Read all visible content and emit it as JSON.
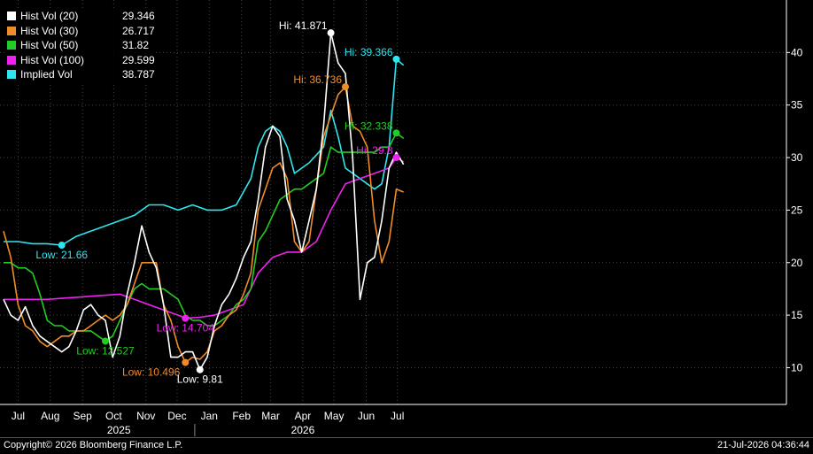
{
  "chart_data": {
    "type": "line",
    "title": "",
    "xlabel": "",
    "ylabel": "",
    "ylim": [
      6.5,
      45
    ],
    "y_ticks": [
      10,
      15,
      20,
      25,
      30,
      35,
      40
    ],
    "y_axis_side": "right",
    "grid": true,
    "legend_position": "top-left",
    "x_start": "2024-07-01",
    "x_end": "2026-07-21",
    "x_month_labels": [
      {
        "label": "Jul",
        "date": "2024-07-15"
      },
      {
        "label": "Aug",
        "date": "2024-08-15"
      },
      {
        "label": "Sep",
        "date": "2024-09-15"
      },
      {
        "label": "Oct",
        "date": "2024-10-15"
      },
      {
        "label": "Nov",
        "date": "2024-11-15"
      },
      {
        "label": "Dec",
        "date": "2024-12-15"
      },
      {
        "label": "Jan",
        "date": "2025-01-15"
      },
      {
        "label": "Feb",
        "date": "2025-02-15"
      },
      {
        "label": "Mar",
        "date": "2025-03-15"
      },
      {
        "label": "Apr",
        "date": "2025-04-15"
      },
      {
        "label": "May",
        "date": "2025-05-15"
      },
      {
        "label": "Jun",
        "date": "2025-06-15"
      },
      {
        "label": "Jul",
        "date": "2025-07-15"
      }
    ],
    "x_year_labels": [
      {
        "label": "2025",
        "date": "2024-10-20"
      },
      {
        "label": "2026",
        "date": "2025-04-15"
      }
    ],
    "year_separator_date": "2025-01-01",
    "series": [
      {
        "name": "Hist Vol (20)",
        "last": "29.346",
        "color": "#ffffff",
        "points": [
          [
            "2024-07-01",
            16.5
          ],
          [
            "2024-07-08",
            15.0
          ],
          [
            "2024-07-15",
            14.5
          ],
          [
            "2024-07-22",
            15.8
          ],
          [
            "2024-07-29",
            14.0
          ],
          [
            "2024-08-05",
            13.0
          ],
          [
            "2024-08-12",
            12.5
          ],
          [
            "2024-08-19",
            12.0
          ],
          [
            "2024-08-26",
            11.5
          ],
          [
            "2024-09-02",
            12.0
          ],
          [
            "2024-09-09",
            13.5
          ],
          [
            "2024-09-16",
            15.5
          ],
          [
            "2024-09-23",
            16.0
          ],
          [
            "2024-09-30",
            15.0
          ],
          [
            "2024-10-07",
            14.5
          ],
          [
            "2024-10-14",
            11.0
          ],
          [
            "2024-10-21",
            13.0
          ],
          [
            "2024-10-28",
            17.0
          ],
          [
            "2024-11-04",
            20.0
          ],
          [
            "2024-11-11",
            23.5
          ],
          [
            "2024-11-18",
            21.0
          ],
          [
            "2024-11-25",
            19.5
          ],
          [
            "2024-12-02",
            16.0
          ],
          [
            "2024-12-09",
            11.0
          ],
          [
            "2024-12-16",
            11.0
          ],
          [
            "2024-12-23",
            11.5
          ],
          [
            "2024-12-30",
            11.5
          ],
          [
            "2025-01-06",
            9.81
          ],
          [
            "2025-01-13",
            11.0
          ],
          [
            "2025-01-20",
            14.0
          ],
          [
            "2025-01-27",
            16.0
          ],
          [
            "2025-02-03",
            17.0
          ],
          [
            "2025-02-10",
            18.5
          ],
          [
            "2025-02-17",
            20.5
          ],
          [
            "2025-02-24",
            22.0
          ],
          [
            "2025-03-03",
            26.0
          ],
          [
            "2025-03-10",
            31.0
          ],
          [
            "2025-03-17",
            33.0
          ],
          [
            "2025-03-24",
            32.0
          ],
          [
            "2025-03-31",
            26.0
          ],
          [
            "2025-04-07",
            24.0
          ],
          [
            "2025-04-14",
            21.0
          ],
          [
            "2025-04-21",
            24.0
          ],
          [
            "2025-04-28",
            27.0
          ],
          [
            "2025-05-05",
            33.0
          ],
          [
            "2025-05-12",
            41.871
          ],
          [
            "2025-05-19",
            39.0
          ],
          [
            "2025-05-26",
            38.0
          ],
          [
            "2025-06-02",
            30.0
          ],
          [
            "2025-06-09",
            16.5
          ],
          [
            "2025-06-16",
            20.0
          ],
          [
            "2025-06-23",
            20.5
          ],
          [
            "2025-06-30",
            24.0
          ],
          [
            "2025-07-07",
            29.0
          ],
          [
            "2025-07-14",
            30.5
          ],
          [
            "2025-07-21",
            29.346
          ]
        ]
      },
      {
        "name": "Hist Vol (30)",
        "last": "26.717",
        "color": "#f08c28",
        "points": [
          [
            "2024-07-01",
            23.0
          ],
          [
            "2024-07-08",
            20.5
          ],
          [
            "2024-07-15",
            16.0
          ],
          [
            "2024-07-22",
            14.0
          ],
          [
            "2024-07-29",
            13.5
          ],
          [
            "2024-08-05",
            12.5
          ],
          [
            "2024-08-12",
            12.0
          ],
          [
            "2024-08-19",
            12.5
          ],
          [
            "2024-08-26",
            13.0
          ],
          [
            "2024-09-02",
            13.0
          ],
          [
            "2024-09-09",
            13.5
          ],
          [
            "2024-09-16",
            13.5
          ],
          [
            "2024-09-23",
            14.0
          ],
          [
            "2024-09-30",
            14.5
          ],
          [
            "2024-10-07",
            15.0
          ],
          [
            "2024-10-14",
            14.5
          ],
          [
            "2024-10-21",
            15.0
          ],
          [
            "2024-10-28",
            16.0
          ],
          [
            "2024-11-04",
            18.0
          ],
          [
            "2024-11-11",
            20.0
          ],
          [
            "2024-11-18",
            20.0
          ],
          [
            "2024-11-25",
            20.0
          ],
          [
            "2024-12-02",
            16.0
          ],
          [
            "2024-12-09",
            14.5
          ],
          [
            "2024-12-16",
            12.0
          ],
          [
            "2024-12-23",
            10.496
          ],
          [
            "2024-12-30",
            11.0
          ],
          [
            "2025-01-06",
            10.8
          ],
          [
            "2025-01-13",
            11.5
          ],
          [
            "2025-01-20",
            13.5
          ],
          [
            "2025-01-27",
            14.0
          ],
          [
            "2025-02-03",
            15.0
          ],
          [
            "2025-02-10",
            15.5
          ],
          [
            "2025-02-17",
            17.0
          ],
          [
            "2025-02-24",
            19.0
          ],
          [
            "2025-03-03",
            25.0
          ],
          [
            "2025-03-10",
            27.0
          ],
          [
            "2025-03-17",
            29.0
          ],
          [
            "2025-03-24",
            29.5
          ],
          [
            "2025-03-31",
            28.0
          ],
          [
            "2025-04-07",
            22.0
          ],
          [
            "2025-04-14",
            21.0
          ],
          [
            "2025-04-21",
            22.0
          ],
          [
            "2025-04-28",
            27.0
          ],
          [
            "2025-05-05",
            32.0
          ],
          [
            "2025-05-12",
            34.0
          ],
          [
            "2025-05-19",
            36.0
          ],
          [
            "2025-05-26",
            36.736
          ],
          [
            "2025-06-02",
            33.0
          ],
          [
            "2025-06-09",
            32.5
          ],
          [
            "2025-06-16",
            31.0
          ],
          [
            "2025-06-23",
            24.0
          ],
          [
            "2025-06-30",
            20.0
          ],
          [
            "2025-07-07",
            22.0
          ],
          [
            "2025-07-14",
            27.0
          ],
          [
            "2025-07-21",
            26.717
          ]
        ]
      },
      {
        "name": "Hist Vol (50)",
        "last": "31.82",
        "color": "#22cc22",
        "points": [
          [
            "2024-07-01",
            20.0
          ],
          [
            "2024-07-08",
            20.0
          ],
          [
            "2024-07-15",
            19.5
          ],
          [
            "2024-07-22",
            19.5
          ],
          [
            "2024-07-29",
            19.0
          ],
          [
            "2024-08-05",
            17.0
          ],
          [
            "2024-08-12",
            14.5
          ],
          [
            "2024-08-19",
            14.0
          ],
          [
            "2024-08-26",
            14.0
          ],
          [
            "2024-09-02",
            13.5
          ],
          [
            "2024-09-09",
            13.5
          ],
          [
            "2024-09-16",
            13.5
          ],
          [
            "2024-09-23",
            13.5
          ],
          [
            "2024-09-30",
            13.0
          ],
          [
            "2024-10-07",
            12.527
          ],
          [
            "2024-10-14",
            13.0
          ],
          [
            "2024-10-21",
            14.5
          ],
          [
            "2024-10-28",
            16.0
          ],
          [
            "2024-11-04",
            17.5
          ],
          [
            "2024-11-11",
            18.0
          ],
          [
            "2024-11-18",
            17.5
          ],
          [
            "2024-11-25",
            17.5
          ],
          [
            "2024-12-02",
            17.5
          ],
          [
            "2024-12-09",
            17.0
          ],
          [
            "2024-12-16",
            16.5
          ],
          [
            "2024-12-23",
            15.0
          ],
          [
            "2024-12-30",
            14.5
          ],
          [
            "2025-01-06",
            14.5
          ],
          [
            "2025-01-13",
            14.0
          ],
          [
            "2025-01-20",
            14.0
          ],
          [
            "2025-01-27",
            14.5
          ],
          [
            "2025-02-03",
            15.0
          ],
          [
            "2025-02-10",
            16.0
          ],
          [
            "2025-02-17",
            16.5
          ],
          [
            "2025-02-24",
            17.5
          ],
          [
            "2025-03-03",
            22.0
          ],
          [
            "2025-03-10",
            23.0
          ],
          [
            "2025-03-17",
            24.5
          ],
          [
            "2025-03-24",
            26.0
          ],
          [
            "2025-03-31",
            26.5
          ],
          [
            "2025-04-07",
            27.0
          ],
          [
            "2025-04-14",
            27.0
          ],
          [
            "2025-04-21",
            27.5
          ],
          [
            "2025-04-28",
            28.0
          ],
          [
            "2025-05-05",
            28.5
          ],
          [
            "2025-05-12",
            31.0
          ],
          [
            "2025-05-19",
            30.5
          ],
          [
            "2025-05-26",
            30.5
          ],
          [
            "2025-06-02",
            30.5
          ],
          [
            "2025-06-09",
            30.5
          ],
          [
            "2025-06-16",
            30.5
          ],
          [
            "2025-06-23",
            30.5
          ],
          [
            "2025-06-30",
            31.0
          ],
          [
            "2025-07-07",
            31.0
          ],
          [
            "2025-07-14",
            32.338
          ],
          [
            "2025-07-21",
            31.82
          ]
        ]
      },
      {
        "name": "Hist Vol (100)",
        "last": "29.599",
        "color": "#ee22ee",
        "points": [
          [
            "2024-07-01",
            16.5
          ],
          [
            "2024-07-15",
            16.5
          ],
          [
            "2024-07-29",
            16.5
          ],
          [
            "2024-08-12",
            16.5
          ],
          [
            "2024-08-26",
            16.6
          ],
          [
            "2024-09-09",
            16.7
          ],
          [
            "2024-09-23",
            16.8
          ],
          [
            "2024-10-07",
            16.9
          ],
          [
            "2024-10-21",
            17.0
          ],
          [
            "2024-11-04",
            16.5
          ],
          [
            "2024-11-18",
            16.0
          ],
          [
            "2024-12-02",
            15.5
          ],
          [
            "2024-12-16",
            15.0
          ],
          [
            "2024-12-23",
            14.704
          ],
          [
            "2025-01-06",
            14.8
          ],
          [
            "2025-01-20",
            15.0
          ],
          [
            "2025-02-03",
            15.5
          ],
          [
            "2025-02-17",
            16.0
          ],
          [
            "2025-03-03",
            19.0
          ],
          [
            "2025-03-17",
            20.5
          ],
          [
            "2025-03-31",
            21.0
          ],
          [
            "2025-04-14",
            21.0
          ],
          [
            "2025-04-28",
            22.0
          ],
          [
            "2025-05-12",
            25.0
          ],
          [
            "2025-05-26",
            27.5
          ],
          [
            "2025-06-09",
            28.0
          ],
          [
            "2025-06-23",
            28.5
          ],
          [
            "2025-07-07",
            29.0
          ],
          [
            "2025-07-14",
            30.0
          ],
          [
            "2025-07-21",
            29.599
          ]
        ]
      },
      {
        "name": "Implied Vol",
        "last": "38.787",
        "color": "#2ee6f0",
        "points": [
          [
            "2024-07-01",
            22.0
          ],
          [
            "2024-07-15",
            22.0
          ],
          [
            "2024-07-29",
            21.8
          ],
          [
            "2024-08-12",
            21.8
          ],
          [
            "2024-08-26",
            21.66
          ],
          [
            "2024-09-09",
            22.5
          ],
          [
            "2024-09-23",
            23.0
          ],
          [
            "2024-10-07",
            23.5
          ],
          [
            "2024-10-21",
            24.0
          ],
          [
            "2024-11-04",
            24.5
          ],
          [
            "2024-11-18",
            25.5
          ],
          [
            "2024-12-02",
            25.5
          ],
          [
            "2024-12-16",
            25.0
          ],
          [
            "2024-12-30",
            25.5
          ],
          [
            "2025-01-13",
            25.0
          ],
          [
            "2025-01-27",
            25.0
          ],
          [
            "2025-02-10",
            25.5
          ],
          [
            "2025-02-24",
            28.0
          ],
          [
            "2025-03-03",
            31.0
          ],
          [
            "2025-03-10",
            32.5
          ],
          [
            "2025-03-17",
            33.0
          ],
          [
            "2025-03-24",
            32.5
          ],
          [
            "2025-03-31",
            31.0
          ],
          [
            "2025-04-07",
            28.5
          ],
          [
            "2025-04-21",
            29.5
          ],
          [
            "2025-05-05",
            31.0
          ],
          [
            "2025-05-12",
            34.5
          ],
          [
            "2025-05-19",
            32.0
          ],
          [
            "2025-05-26",
            29.0
          ],
          [
            "2025-06-09",
            28.0
          ],
          [
            "2025-06-23",
            27.0
          ],
          [
            "2025-06-30",
            27.5
          ],
          [
            "2025-07-07",
            31.0
          ],
          [
            "2025-07-14",
            39.366
          ],
          [
            "2025-07-21",
            38.787
          ]
        ]
      }
    ],
    "annotations": [
      {
        "text": "Hi: 41.871",
        "series": 0,
        "date": "2025-05-12",
        "value": 41.871,
        "pos": "left"
      },
      {
        "text": "Hi: 36.736",
        "series": 1,
        "date": "2025-05-26",
        "value": 36.736,
        "pos": "left"
      },
      {
        "text": "Hi: 39.366",
        "series": 4,
        "date": "2025-07-14",
        "value": 39.366,
        "pos": "left"
      },
      {
        "text": "Hi: 32.338",
        "series": 2,
        "date": "2025-07-14",
        "value": 32.338,
        "pos": "left"
      },
      {
        "text": "Hi: 29.8",
        "series": 3,
        "date": "2025-07-14",
        "value": 30.0,
        "pos": "left"
      },
      {
        "text": "Low: 21.66",
        "series": 4,
        "date": "2024-08-26",
        "value": 21.66,
        "pos": "below"
      },
      {
        "text": "Low: 12.527",
        "series": 2,
        "date": "2024-10-07",
        "value": 12.527,
        "pos": "below"
      },
      {
        "text": "Low: 14.704",
        "series": 3,
        "date": "2024-12-23",
        "value": 14.704,
        "pos": "below"
      },
      {
        "text": "Low: 10.496",
        "series": 1,
        "date": "2024-12-23",
        "value": 10.496,
        "pos": "belowleft"
      },
      {
        "text": "Low: 9.81",
        "series": 0,
        "date": "2025-01-06",
        "value": 9.81,
        "pos": "below"
      }
    ]
  },
  "footer": {
    "copyright": "Copyright© 2026 Bloomberg Finance L.P.",
    "timestamp": "21-Jul-2026 04:36:44"
  }
}
